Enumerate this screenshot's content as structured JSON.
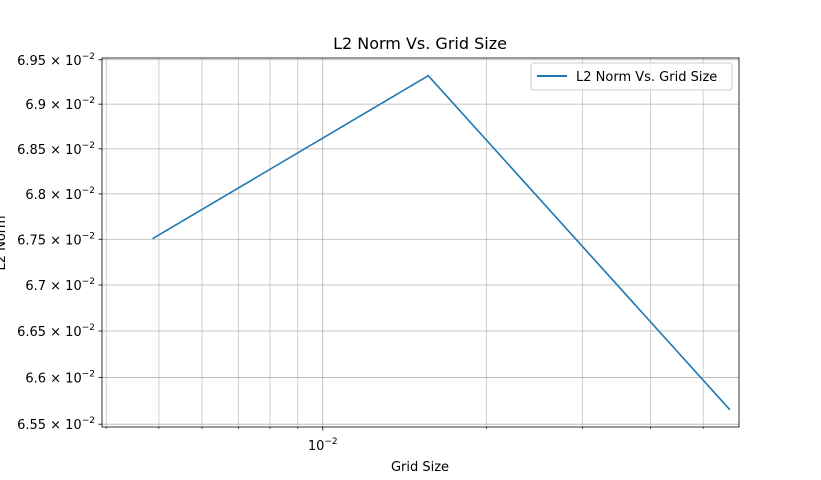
{
  "chart_data": {
    "type": "line",
    "title": "L2 Norm Vs. Grid Size",
    "xlabel": "Grid Size",
    "ylabel": "L2 Norm",
    "x_scale": "log",
    "y_scale": "log",
    "xlim": [
      0.00393,
      0.0582
    ],
    "ylim": [
      0.06547,
      0.06952
    ],
    "grid": true,
    "legend_position": "upper right",
    "x_ticks": [
      {
        "value": 0.01,
        "mantissa": "",
        "exp": "−2",
        "label": "10^−2"
      }
    ],
    "y_ticks": [
      {
        "value": 0.0655,
        "mantissa": "6.55",
        "exp": "−2",
        "label": "6.55 × 10^−2"
      },
      {
        "value": 0.066,
        "mantissa": "6.6",
        "exp": "−2",
        "label": "6.6 × 10^−2"
      },
      {
        "value": 0.0665,
        "mantissa": "6.65",
        "exp": "−2",
        "label": "6.65 × 10^−2"
      },
      {
        "value": 0.067,
        "mantissa": "6.7",
        "exp": "−2",
        "label": "6.7 × 10^−2"
      },
      {
        "value": 0.0675,
        "mantissa": "6.75",
        "exp": "−2",
        "label": "6.75 × 10^−2"
      },
      {
        "value": 0.068,
        "mantissa": "6.8",
        "exp": "−2",
        "label": "6.8 × 10^−2"
      },
      {
        "value": 0.0685,
        "mantissa": "6.85",
        "exp": "−2",
        "label": "6.85 × 10^−2"
      },
      {
        "value": 0.069,
        "mantissa": "6.9",
        "exp": "−2",
        "label": "6.9 × 10^−2"
      },
      {
        "value": 0.0695,
        "mantissa": "6.95",
        "exp": "−2",
        "label": "6.95 × 10^−2"
      }
    ],
    "series": [
      {
        "name": "L2 Norm Vs. Grid Size",
        "color": "#1f77b4",
        "x": [
          0.00488,
          0.01563,
          0.05588
        ],
        "y": [
          0.06751,
          0.06932,
          0.06566
        ]
      }
    ]
  }
}
